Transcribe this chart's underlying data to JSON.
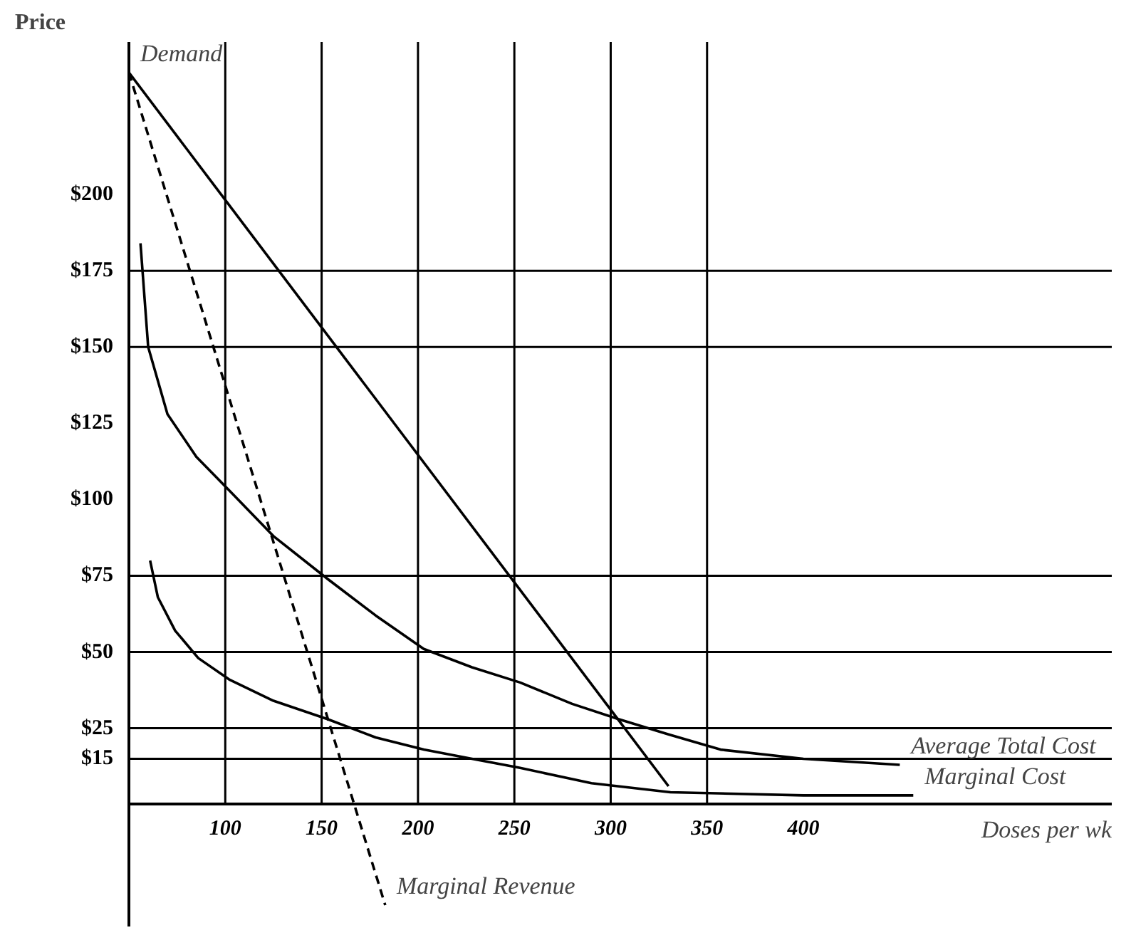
{
  "chart_data": {
    "type": "line",
    "ylabel": "Price",
    "xlabel": "Doses per wk",
    "xlim": [
      50,
      560
    ],
    "ylim": [
      -40,
      250
    ],
    "xticks": [
      100,
      150,
      200,
      250,
      300,
      350,
      400
    ],
    "yticks": [
      {
        "value": 15,
        "label": "$15"
      },
      {
        "value": 25,
        "label": "$25"
      },
      {
        "value": 50,
        "label": "$50"
      },
      {
        "value": 75,
        "label": "$75"
      },
      {
        "value": 100,
        "label": "$100"
      },
      {
        "value": 125,
        "label": "$125"
      },
      {
        "value": 150,
        "label": "$150"
      },
      {
        "value": 175,
        "label": "$175"
      },
      {
        "value": 200,
        "label": "$200"
      }
    ],
    "grid": false,
    "series": [
      {
        "name": "Demand",
        "color": "#000000",
        "x": [
          330,
          50
        ],
        "values": [
          6,
          240
        ]
      },
      {
        "name": "Marginal Revenue",
        "color": "#000000",
        "line_style": "dashed",
        "x": [
          50,
          183
        ],
        "values": [
          240,
          -33
        ]
      },
      {
        "name": "Average Total Cost",
        "color": "#000000",
        "x": [
          56,
          60,
          70,
          85,
          102,
          125,
          153,
          178,
          203,
          228,
          253,
          280,
          304,
          330,
          357,
          400,
          450
        ],
        "values": [
          184,
          150,
          128,
          114,
          103,
          88,
          74,
          62,
          51,
          45,
          40,
          33,
          28,
          23,
          18,
          15,
          13
        ]
      },
      {
        "name": "Marginal Cost",
        "color": "#000000",
        "x": [
          61,
          65,
          74,
          86,
          102,
          125,
          153,
          178,
          203,
          228,
          253,
          290,
          331,
          400,
          457
        ],
        "values": [
          80,
          68,
          57,
          48,
          41,
          34,
          28,
          22,
          18,
          15,
          12,
          7,
          4,
          3,
          3
        ]
      }
    ],
    "ref_lines": [
      {
        "axis": "y",
        "value": 15,
        "color": "#000000"
      },
      {
        "axis": "y",
        "value": 25,
        "color": "#000000"
      },
      {
        "axis": "y",
        "value": 50,
        "color": "#000000"
      },
      {
        "axis": "y",
        "value": 75,
        "color": "#000000"
      },
      {
        "axis": "y",
        "value": 150,
        "color": "#000000"
      },
      {
        "axis": "y",
        "value": 175,
        "color": "#000000"
      },
      {
        "axis": "x",
        "value": 100,
        "color": "#000000"
      },
      {
        "axis": "x",
        "value": 150,
        "color": "#000000"
      },
      {
        "axis": "x",
        "value": 200,
        "color": "#000000"
      },
      {
        "axis": "x",
        "value": 250,
        "color": "#000000"
      },
      {
        "axis": "x",
        "value": 300,
        "color": "#000000"
      },
      {
        "axis": "x",
        "value": 350,
        "color": "#000000"
      }
    ]
  }
}
